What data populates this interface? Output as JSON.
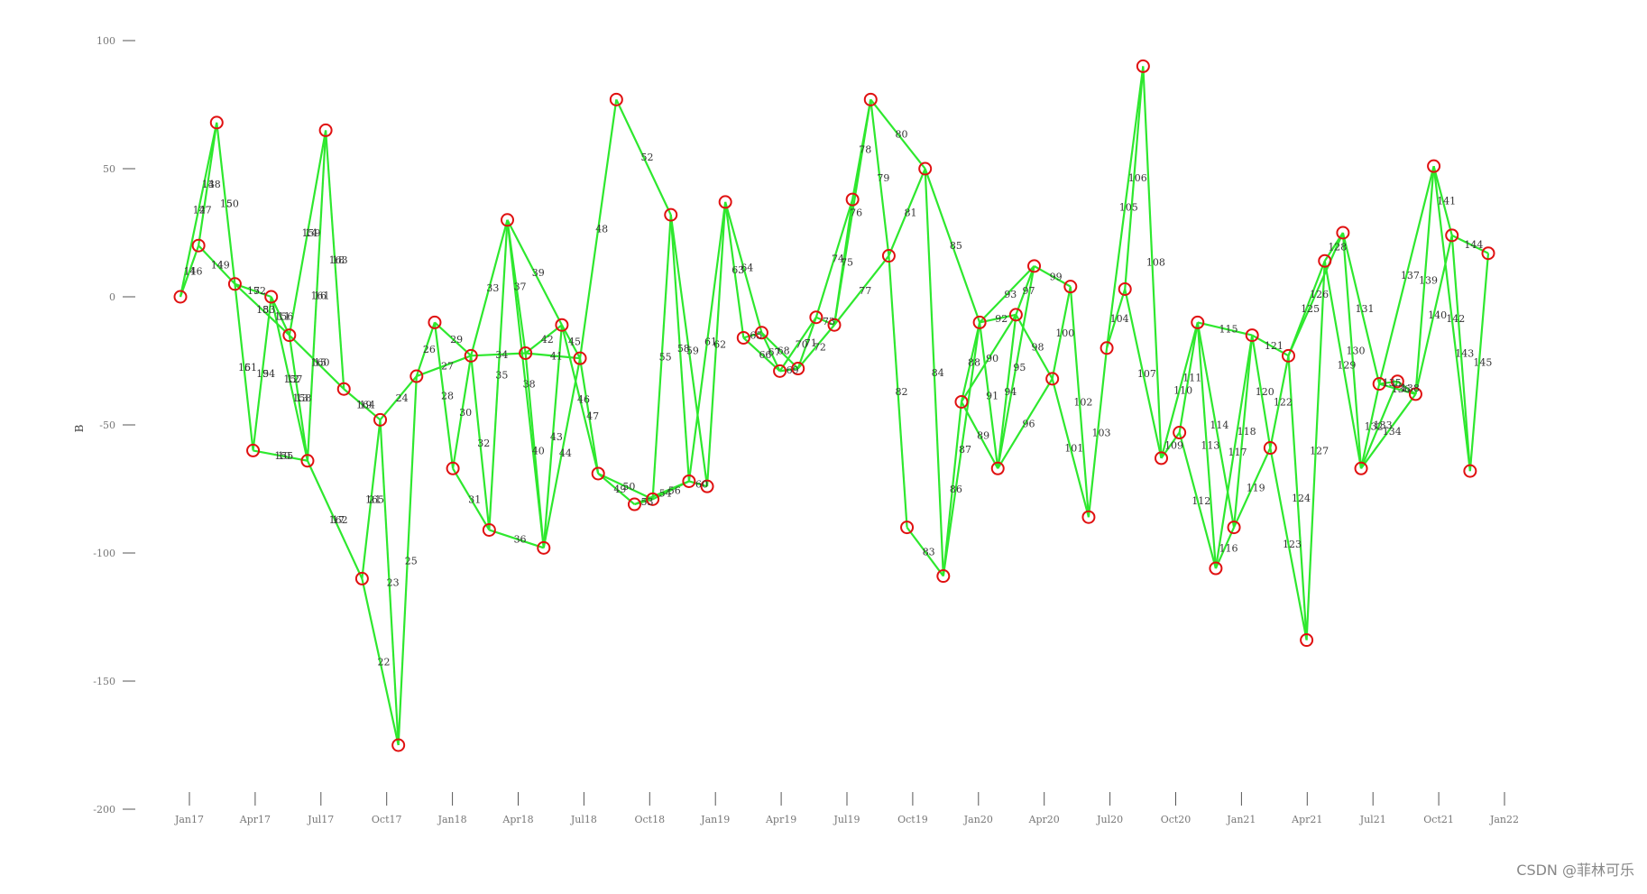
{
  "chart_data": {
    "type": "line",
    "ylabel": "B",
    "ylim": [
      -200,
      100
    ],
    "y_ticks": [
      100,
      50,
      0,
      -50,
      -100,
      -150,
      -200
    ],
    "y_tick_labels": [
      "100",
      "50",
      "0",
      "-50",
      "-100",
      "-150",
      "-200"
    ],
    "x_ticks": [
      "Jan17",
      "Apr17",
      "Jul17",
      "Oct17",
      "Jan18",
      "Apr18",
      "Jul18",
      "Oct18",
      "Jan19",
      "Apr19",
      "Jul19",
      "Oct19",
      "Jan20",
      "Apr20",
      "Jul20",
      "Oct20",
      "Jan21",
      "Apr21",
      "Jul21",
      "Oct21",
      "Jan22"
    ],
    "colors": {
      "line": "#2ee82e",
      "marker": "#e01010",
      "axis": "#555555"
    },
    "points": [
      {
        "label": "",
        "x": "Jan17",
        "y": 0
      },
      {
        "label": "",
        "x": "Feb17",
        "y": 20
      },
      {
        "label": "",
        "x": "Mar17",
        "y": 68
      },
      {
        "label": "",
        "x": "Apr17",
        "y": 5
      },
      {
        "label": "",
        "x": "May17",
        "y": -60
      },
      {
        "label": "",
        "x": "May17b",
        "y": 0
      },
      {
        "label": "",
        "x": "Jun17",
        "y": -15
      },
      {
        "label": "",
        "x": "Jul17",
        "y": -64
      },
      {
        "label": "",
        "x": "Aug17",
        "y": 65
      },
      {
        "label": "",
        "x": "Sep17",
        "y": -36
      },
      {
        "label": "",
        "x": "Oct17",
        "y": -110
      },
      {
        "label": "",
        "x": "Nov17",
        "y": -48
      },
      {
        "label": "",
        "x": "Dec17",
        "y": -175
      },
      {
        "label": "",
        "x": "Jan18",
        "y": -31
      },
      {
        "label": "",
        "x": "Feb18",
        "y": -10
      },
      {
        "label": "",
        "x": "Mar18",
        "y": -67
      },
      {
        "label": "",
        "x": "Mar18b",
        "y": -23
      },
      {
        "label": "",
        "x": "Apr18",
        "y": -91
      },
      {
        "label": "",
        "x": "May18",
        "y": 30
      },
      {
        "label": "",
        "x": "Jun18",
        "y": -22
      },
      {
        "label": "",
        "x": "Jun18b",
        "y": -98
      },
      {
        "label": "",
        "x": "Jul18",
        "y": -11
      },
      {
        "label": "",
        "x": "Aug18",
        "y": -24
      },
      {
        "label": "",
        "x": "Sep18",
        "y": -69
      },
      {
        "label": "",
        "x": "Sep18b",
        "y": 77
      },
      {
        "label": "",
        "x": "Oct18",
        "y": -81
      },
      {
        "label": "",
        "x": "Nov18",
        "y": -79
      },
      {
        "label": "",
        "x": "Dec18",
        "y": 32
      },
      {
        "label": "",
        "x": "Dec18b",
        "y": -72
      },
      {
        "label": "",
        "x": "Jan19",
        "y": -74
      },
      {
        "label": "",
        "x": "Feb19",
        "y": 37
      },
      {
        "label": "",
        "x": "Mar19",
        "y": -16
      },
      {
        "label": "",
        "x": "Mar19b",
        "y": -14
      },
      {
        "label": "",
        "x": "Apr19",
        "y": -29
      },
      {
        "label": "",
        "x": "May19",
        "y": -28
      },
      {
        "label": "",
        "x": "Jun19",
        "y": -8
      },
      {
        "label": "",
        "x": "Jun19b",
        "y": -11
      },
      {
        "label": "",
        "x": "Jul19",
        "y": 38
      },
      {
        "label": "",
        "x": "Aug19",
        "y": 77
      },
      {
        "label": "",
        "x": "Aug19b",
        "y": 16
      },
      {
        "label": "",
        "x": "Sep19",
        "y": -90
      },
      {
        "label": "",
        "x": "Oct19",
        "y": 50
      },
      {
        "label": "",
        "x": "Nov19",
        "y": -109
      },
      {
        "label": "",
        "x": "Nov19b",
        "y": -41
      },
      {
        "label": "",
        "x": "Dec19",
        "y": -10
      },
      {
        "label": "",
        "x": "Jan20",
        "y": -67
      },
      {
        "label": "",
        "x": "Jan20b",
        "y": -7
      },
      {
        "label": "",
        "x": "Feb20",
        "y": 12
      },
      {
        "label": "",
        "x": "Feb20b",
        "y": -32
      },
      {
        "label": "",
        "x": "Mar20",
        "y": 4
      },
      {
        "label": "",
        "x": "Apr20",
        "y": -86
      },
      {
        "label": "",
        "x": "May20",
        "y": -20
      },
      {
        "label": "",
        "x": "Jun20",
        "y": 3
      },
      {
        "label": "",
        "x": "Jul20",
        "y": 90
      },
      {
        "label": "",
        "x": "Aug20",
        "y": -63
      },
      {
        "label": "",
        "x": "Aug20b",
        "y": -53
      },
      {
        "label": "",
        "x": "Sep20",
        "y": -10
      },
      {
        "label": "",
        "x": "Oct20",
        "y": -106
      },
      {
        "label": "",
        "x": "Oct20b",
        "y": -90
      },
      {
        "label": "",
        "x": "Nov20",
        "y": -15
      },
      {
        "label": "",
        "x": "Dec20",
        "y": -59
      },
      {
        "label": "",
        "x": "Jan21",
        "y": -23
      },
      {
        "label": "",
        "x": "Feb21",
        "y": -134
      },
      {
        "label": "",
        "x": "Mar21",
        "y": 14
      },
      {
        "label": "",
        "x": "Mar21b",
        "y": 25
      },
      {
        "label": "",
        "x": "Apr21",
        "y": -67
      },
      {
        "label": "",
        "x": "May21",
        "y": -34
      },
      {
        "label": "",
        "x": "May21b",
        "y": -33
      },
      {
        "label": "",
        "x": "Jun21",
        "y": -38
      },
      {
        "label": "",
        "x": "Jul21",
        "y": 51
      },
      {
        "label": "",
        "x": "Aug21",
        "y": 24
      },
      {
        "label": "",
        "x": "Sep21",
        "y": -68
      },
      {
        "label": "",
        "x": "Oct21",
        "y": 17
      }
    ],
    "edges": [
      [
        0,
        1
      ],
      [
        0,
        2
      ],
      [
        1,
        2
      ],
      [
        1,
        3
      ],
      [
        2,
        3
      ],
      [
        3,
        4
      ],
      [
        3,
        5
      ],
      [
        3,
        6
      ],
      [
        4,
        5
      ],
      [
        4,
        7
      ],
      [
        5,
        6
      ],
      [
        5,
        7
      ],
      [
        6,
        7
      ],
      [
        6,
        8
      ],
      [
        6,
        9
      ],
      [
        7,
        8
      ],
      [
        7,
        10
      ],
      [
        8,
        9
      ],
      [
        9,
        11
      ],
      [
        10,
        11
      ],
      [
        10,
        12
      ],
      [
        11,
        12
      ],
      [
        11,
        13
      ],
      [
        12,
        13
      ],
      [
        13,
        14
      ],
      [
        13,
        16
      ],
      [
        14,
        15
      ],
      [
        14,
        16
      ],
      [
        15,
        16
      ],
      [
        15,
        17
      ],
      [
        16,
        17
      ],
      [
        16,
        18
      ],
      [
        16,
        19
      ],
      [
        17,
        18
      ],
      [
        17,
        20
      ],
      [
        18,
        19
      ],
      [
        18,
        20
      ],
      [
        18,
        21
      ],
      [
        19,
        20
      ],
      [
        19,
        22
      ],
      [
        19,
        21
      ],
      [
        20,
        21
      ],
      [
        20,
        22
      ],
      [
        21,
        22
      ],
      [
        21,
        23
      ],
      [
        22,
        23
      ],
      [
        22,
        24
      ],
      [
        23,
        25
      ],
      [
        23,
        26
      ],
      [
        24,
        27
      ],
      [
        25,
        26
      ],
      [
        25,
        28
      ],
      [
        26,
        27
      ],
      [
        26,
        28
      ],
      [
        27,
        28
      ],
      [
        27,
        29
      ],
      [
        28,
        29
      ],
      [
        28,
        30
      ],
      [
        29,
        30
      ],
      [
        30,
        31
      ],
      [
        30,
        32
      ],
      [
        31,
        32
      ],
      [
        31,
        33
      ],
      [
        32,
        33
      ],
      [
        32,
        34
      ],
      [
        33,
        34
      ],
      [
        33,
        35
      ],
      [
        34,
        35
      ],
      [
        34,
        36
      ],
      [
        35,
        36
      ],
      [
        35,
        37
      ],
      [
        36,
        37
      ],
      [
        36,
        38
      ],
      [
        36,
        39
      ],
      [
        37,
        38
      ],
      [
        38,
        39
      ],
      [
        38,
        41
      ],
      [
        39,
        41
      ],
      [
        39,
        40
      ],
      [
        40,
        42
      ],
      [
        41,
        42
      ],
      [
        41,
        44
      ],
      [
        42,
        43
      ],
      [
        42,
        44
      ],
      [
        43,
        44
      ],
      [
        43,
        45
      ],
      [
        43,
        46
      ],
      [
        44,
        45
      ],
      [
        44,
        46
      ],
      [
        44,
        47
      ],
      [
        45,
        46
      ],
      [
        45,
        47
      ],
      [
        45,
        48
      ],
      [
        46,
        47
      ],
      [
        46,
        48
      ],
      [
        47,
        49
      ],
      [
        48,
        49
      ],
      [
        48,
        50
      ],
      [
        49,
        50
      ],
      [
        50,
        51
      ],
      [
        51,
        52
      ],
      [
        51,
        53
      ],
      [
        52,
        53
      ],
      [
        52,
        54
      ],
      [
        53,
        54
      ],
      [
        54,
        55
      ],
      [
        54,
        56
      ],
      [
        55,
        56
      ],
      [
        55,
        57
      ],
      [
        56,
        57
      ],
      [
        56,
        58
      ],
      [
        56,
        59
      ],
      [
        57,
        58
      ],
      [
        57,
        59
      ],
      [
        58,
        59
      ],
      [
        58,
        60
      ],
      [
        59,
        60
      ],
      [
        59,
        61
      ],
      [
        60,
        61
      ],
      [
        60,
        62
      ],
      [
        61,
        62
      ],
      [
        61,
        63
      ],
      [
        61,
        64
      ],
      [
        62,
        63
      ],
      [
        63,
        64
      ],
      [
        63,
        65
      ],
      [
        64,
        65
      ],
      [
        64,
        66
      ],
      [
        65,
        66
      ],
      [
        65,
        67
      ],
      [
        65,
        68
      ],
      [
        66,
        67
      ],
      [
        66,
        68
      ],
      [
        66,
        69
      ],
      [
        67,
        68
      ],
      [
        68,
        69
      ],
      [
        68,
        70
      ],
      [
        69,
        70
      ],
      [
        69,
        71
      ],
      [
        70,
        71
      ],
      [
        70,
        72
      ],
      [
        71,
        72
      ]
    ],
    "point_labels_text": [
      "1",
      "2",
      "3",
      "4",
      "5",
      "6",
      "7",
      "8",
      "9",
      "10",
      "11",
      "12",
      "13",
      "14",
      "15",
      "16",
      "17",
      "18",
      "19",
      "21",
      "22",
      "23",
      "24",
      "25",
      "26",
      "27",
      "28",
      "29",
      "30",
      "31",
      "32",
      "33",
      "34",
      "35",
      "36",
      "37",
      "38",
      "39",
      "40",
      "41",
      "42",
      "43",
      "44",
      "45",
      "46",
      "47",
      "48",
      "49",
      "50",
      "52",
      "53",
      "54",
      "55",
      "56",
      "58",
      "59",
      "60",
      "61",
      "62",
      "63",
      "64",
      "65",
      "66",
      "67",
      "68",
      "69",
      "70",
      "71",
      "72",
      "73",
      "74",
      "75",
      "76",
      "77",
      "78",
      "79",
      "80",
      "81",
      "82",
      "83",
      "84",
      "85",
      "86",
      "87",
      "88",
      "89",
      "90",
      "91",
      "92",
      "93",
      "94",
      "95",
      "96",
      "97",
      "98",
      "99",
      "100",
      "101",
      "102",
      "103",
      "104",
      "105",
      "106",
      "107",
      "108",
      "109",
      "110",
      "111",
      "112",
      "113",
      "114",
      "115",
      "116",
      "117",
      "118",
      "119",
      "120",
      "121",
      "122",
      "123",
      "124",
      "125",
      "126",
      "127",
      "128",
      "129",
      "130",
      "131",
      "132",
      "133",
      "134",
      "135",
      "136",
      "137",
      "138",
      "139",
      "140",
      "141",
      "142",
      "143",
      "144",
      "145",
      "146",
      "147",
      "148",
      "149",
      "150",
      "151",
      "152",
      "153",
      "154",
      "155",
      "156",
      "157",
      "158",
      "159",
      "160",
      "161",
      "162",
      "163",
      "164",
      "165"
    ]
  },
  "watermark": "CSDN @菲林可乐"
}
